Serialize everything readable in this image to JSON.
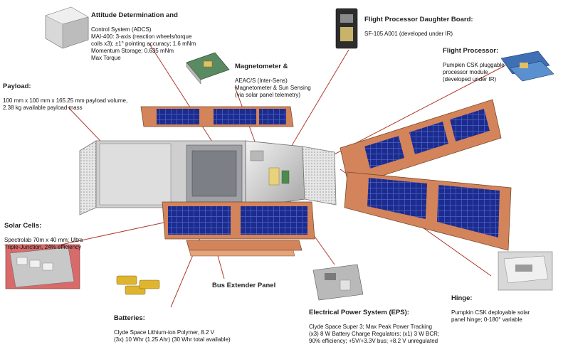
{
  "diagram": {
    "components": [
      {
        "id": "adcs",
        "title": "Attitude Determination and",
        "body": "Control System (ADCS)\nMAI-400: 3-axis (reaction wheels/torque\ncoils x3); ±1° pointing accuracy; 1.6 mNm\nMomentum Storage; 0.635 mNm\nMax Torque"
      },
      {
        "id": "mag",
        "title": "Magnetometer &",
        "body": "AEAC/S (Inter-Sens)\nMagnetometer & Sun Sensing\n(via solar panel telemetry)"
      },
      {
        "id": "fpd",
        "title": "Flight Processor Daughter Board:",
        "body": "SF-105 A001 (developed under IR)"
      },
      {
        "id": "fpm",
        "title": "Flight Processor:",
        "body": "Pumpkin CSK pluggable\nprocessor module\n(developed under IR)"
      },
      {
        "id": "payload",
        "title": "Payload:",
        "body": "100 mm x 100 mm x 165.25 mm payload volume,\n2.38 kg available payload mass"
      },
      {
        "id": "cells",
        "title": "Solar Cells:",
        "body": "Spectrolab 70m x 40 mm; Ultra\nTriple-Junction, 24% efficiency"
      },
      {
        "id": "bep",
        "title": "Bus Extender Panel",
        "body": ""
      },
      {
        "id": "batt",
        "title": "Batteries:",
        "body": "Clyde Space Lithium-ion Polymer, 8.2 V\n(3x) 10 Whr (1.25 Ahr) (30 Whr total available)"
      },
      {
        "id": "eps",
        "title": "Electrical Power System (EPS):",
        "body": "Clyde Space Super 3; Max Peak Power Tracking\n(x3) 8 W Battery Charge Regulators; (x1) 3 W BCR;\n90% efficiency; +5V/+3.3V bus; +8.2 V unregulated"
      },
      {
        "id": "hinge",
        "title": "Hinge:",
        "body": "Pumpkin CSK deployable solar\npanel hinge; 0-180° variable"
      }
    ]
  },
  "colors": {
    "frame_orange": "#d4845a",
    "cell_blue": "#1c2c8e",
    "chassis_grey": "#c9c9c9",
    "callout_line": "#b03a2e",
    "label_text": "#111111"
  }
}
